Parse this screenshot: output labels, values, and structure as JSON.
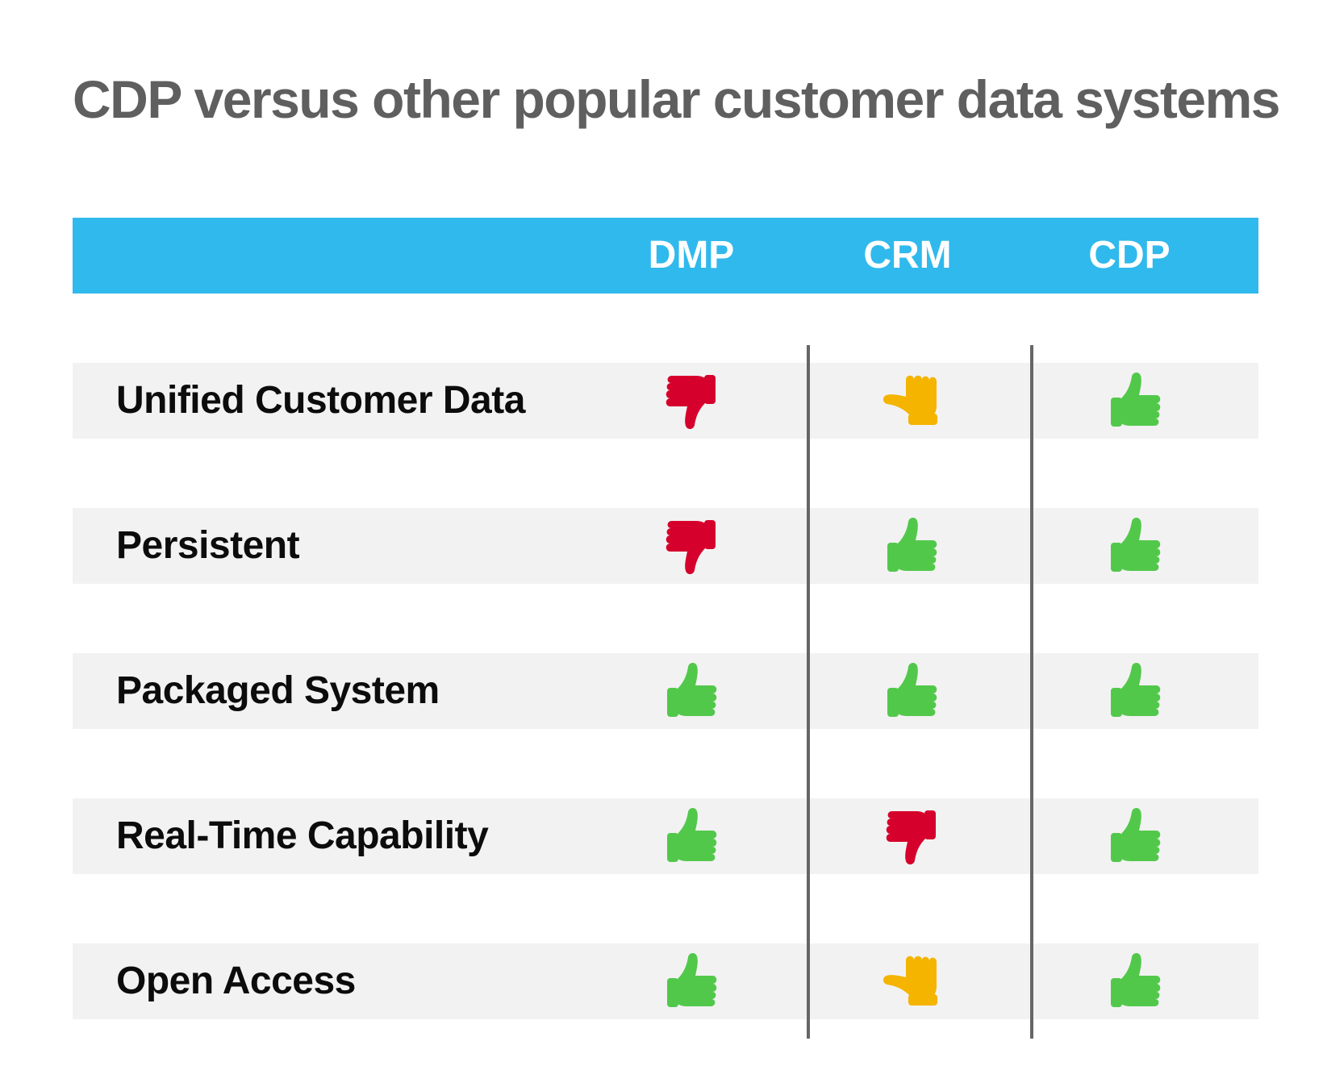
{
  "title": "CDP versus other popular customer data systems",
  "columns": [
    "DMP",
    "CRM",
    "CDP"
  ],
  "rows": [
    {
      "label": "Unified Customer Data",
      "ratings": [
        "thumbs-down",
        "thumbs-sideways",
        "thumbs-up"
      ]
    },
    {
      "label": "Persistent",
      "ratings": [
        "thumbs-down",
        "thumbs-up",
        "thumbs-up"
      ]
    },
    {
      "label": "Packaged System",
      "ratings": [
        "thumbs-up",
        "thumbs-up",
        "thumbs-up"
      ]
    },
    {
      "label": "Real-Time Capability",
      "ratings": [
        "thumbs-up",
        "thumbs-down",
        "thumbs-up"
      ]
    },
    {
      "label": "Open Access",
      "ratings": [
        "thumbs-up",
        "thumbs-sideways",
        "thumbs-up"
      ]
    }
  ],
  "rating_colors": {
    "thumbs-up": "#52c84b",
    "thumbs-down": "#d6002c",
    "thumbs-sideways": "#f4b400"
  },
  "header_color": "#30b9ec"
}
